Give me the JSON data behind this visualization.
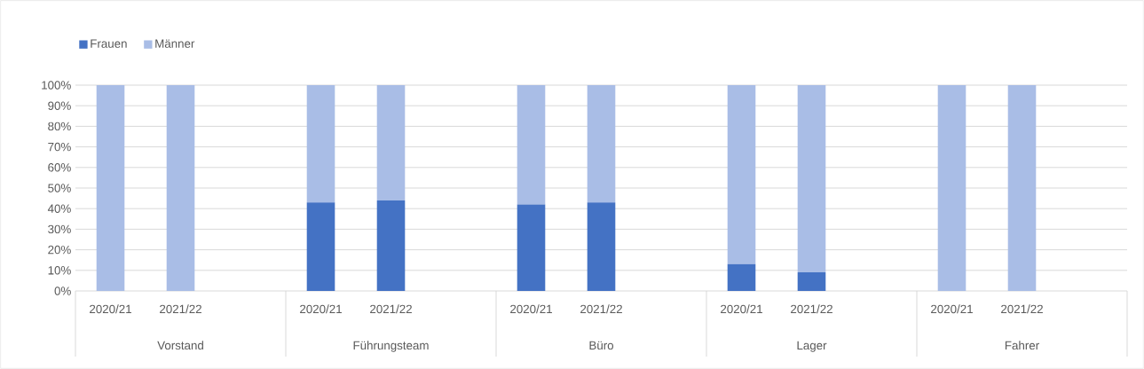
{
  "chart_data": {
    "type": "bar",
    "stacked": true,
    "categories": [
      "2020/21",
      "2021/22",
      null,
      "2020/21",
      "2021/22",
      null,
      "2020/21",
      "2021/22",
      null,
      "2020/21",
      "2021/22",
      null,
      "2020/21",
      "2021/22",
      null
    ],
    "series": [
      {
        "name": "Frauen",
        "color": "#4472c4",
        "values": [
          0,
          0,
          null,
          43,
          44,
          null,
          42,
          43,
          null,
          13,
          9,
          null,
          0,
          0,
          null
        ]
      },
      {
        "name": "Männer",
        "color": "#a9bde6",
        "values": [
          100,
          100,
          null,
          57,
          56,
          null,
          58,
          57,
          null,
          87,
          91,
          null,
          100,
          100,
          null
        ]
      }
    ],
    "annotations": [
      "Vorstand",
      "Führungsteam",
      "Büro",
      "Lager",
      "Fahrer"
    ],
    "ylim": [
      0,
      100
    ],
    "yticks": [
      {
        "value": 0,
        "label": "0%"
      },
      {
        "value": 10,
        "label": "10%"
      },
      {
        "value": 20,
        "label": "20%"
      },
      {
        "value": 30,
        "label": "30%"
      },
      {
        "value": 40,
        "label": "40%"
      },
      {
        "value": 50,
        "label": "50%"
      },
      {
        "value": 60,
        "label": "60%"
      },
      {
        "value": 70,
        "label": "70%"
      },
      {
        "value": 80,
        "label": "80%"
      },
      {
        "value": 90,
        "label": "90%"
      },
      {
        "value": 100,
        "label": "100%"
      }
    ],
    "grid": "y",
    "legend": "top left"
  }
}
